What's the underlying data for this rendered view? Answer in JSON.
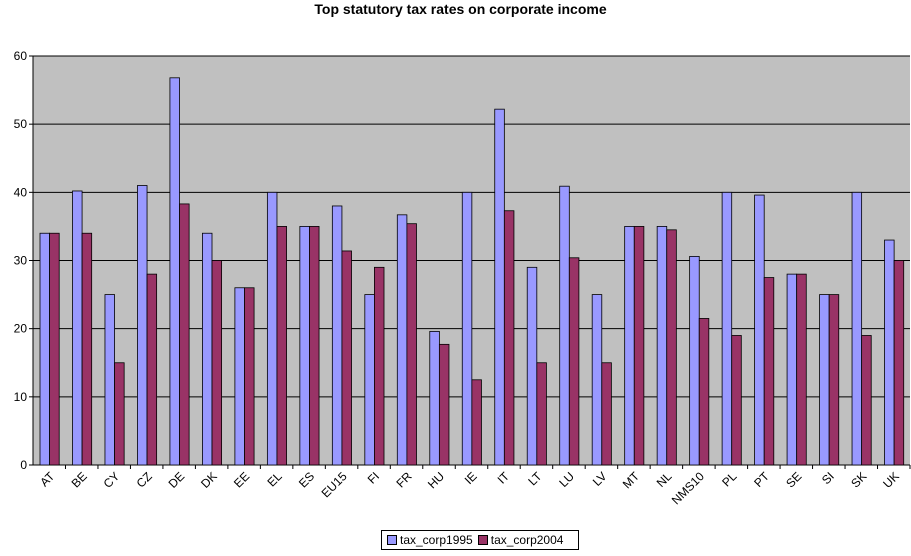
{
  "chart_data": {
    "type": "bar",
    "title": "Top statutory tax rates on corporate income",
    "xlabel": "",
    "ylabel": "",
    "ylim": [
      0,
      60
    ],
    "yticks": [
      0,
      10,
      20,
      30,
      40,
      50,
      60
    ],
    "grid": true,
    "legend_position": "bottom",
    "categories": [
      "AT",
      "BE",
      "CY",
      "CZ",
      "DE",
      "DK",
      "EE",
      "EL",
      "ES",
      "EU15",
      "FI",
      "FR",
      "HU",
      "IE",
      "IT",
      "LT",
      "LU",
      "LV",
      "MT",
      "NL",
      "NMS10",
      "PL",
      "PT",
      "SE",
      "SI",
      "SK",
      "UK"
    ],
    "series": [
      {
        "name": "tax_corp1995",
        "color": "#9999ff",
        "values": [
          34,
          40.2,
          25,
          41,
          56.8,
          34,
          26,
          40,
          35,
          38,
          25,
          36.7,
          19.6,
          40,
          52.2,
          29,
          40.9,
          25,
          35,
          35,
          30.6,
          40,
          39.6,
          28,
          25,
          40,
          33
        ]
      },
      {
        "name": "tax_corp2004",
        "color": "#993366",
        "values": [
          34,
          34,
          15,
          28,
          38.3,
          30,
          26,
          35,
          35,
          31.4,
          29,
          35.4,
          17.7,
          12.5,
          37.3,
          15,
          30.4,
          15,
          35,
          34.5,
          21.5,
          19,
          27.5,
          28,
          25,
          19,
          30
        ]
      }
    ],
    "plot_background": "#c0c0c0"
  }
}
